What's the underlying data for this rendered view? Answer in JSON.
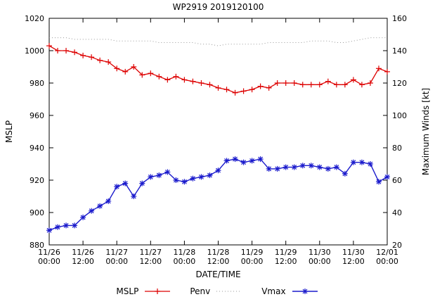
{
  "title": "WP2919 2019120100",
  "axes": {
    "left_label": "MSLP",
    "right_label": "Maximum Winds [kt]",
    "x_label": "DATE/TIME"
  },
  "chart_data": {
    "type": "line",
    "title": "WP2919 2019120100",
    "xlabel": "DATE/TIME",
    "x_interval_hours": 3,
    "x_tick_every": 4,
    "x_tick_labels": [
      [
        "11/26",
        "00:00"
      ],
      [
        "11/26",
        "12:00"
      ],
      [
        "11/27",
        "00:00"
      ],
      [
        "11/27",
        "12:00"
      ],
      [
        "11/28",
        "00:00"
      ],
      [
        "11/28",
        "12:00"
      ],
      [
        "11/29",
        "00:00"
      ],
      [
        "11/29",
        "12:00"
      ],
      [
        "11/30",
        "00:00"
      ],
      [
        "11/30",
        "12:00"
      ],
      [
        "12/01",
        "00:00"
      ]
    ],
    "grid": false,
    "legend_position": "bottom",
    "y_left": {
      "label": "MSLP",
      "range": [
        880,
        1020
      ],
      "ticks": [
        880,
        900,
        920,
        940,
        960,
        980,
        1000,
        1020
      ]
    },
    "y_right": {
      "label": "Maximum Winds [kt]",
      "range": [
        20,
        160
      ],
      "ticks": [
        20,
        40,
        60,
        80,
        100,
        120,
        140,
        160
      ]
    },
    "series": [
      {
        "name": "MSLP",
        "axis": "left",
        "color": "#dd0000",
        "style": "solid",
        "marker": "plus",
        "width": 1.3,
        "values": [
          1003,
          1000,
          1000,
          999,
          997,
          996,
          994,
          993,
          989,
          987,
          990,
          985,
          986,
          984,
          982,
          984,
          982,
          981,
          980,
          979,
          977,
          976,
          974,
          975,
          976,
          978,
          977,
          980,
          980,
          980,
          979,
          979,
          979,
          981,
          979,
          979,
          982,
          979,
          980,
          989,
          987
        ]
      },
      {
        "name": "Penv",
        "axis": "left",
        "color": "#999999",
        "style": "dotted",
        "marker": "none",
        "width": 1,
        "values": [
          1008,
          1008,
          1008,
          1007,
          1007,
          1007,
          1007,
          1007,
          1006,
          1006,
          1006,
          1006,
          1006,
          1005,
          1005,
          1005,
          1005,
          1005,
          1004,
          1004,
          1003,
          1004,
          1004,
          1004,
          1004,
          1004,
          1005,
          1005,
          1005,
          1005,
          1005,
          1006,
          1006,
          1006,
          1005,
          1005,
          1006,
          1007,
          1008,
          1008,
          1008
        ]
      },
      {
        "name": "Vmax",
        "axis": "right",
        "color": "#1a1acc",
        "style": "solid",
        "marker": "asterisk",
        "width": 1.4,
        "values": [
          29,
          31,
          32,
          32,
          37,
          41,
          44,
          47,
          56,
          58,
          50,
          58,
          62,
          63,
          65,
          60,
          59,
          61,
          62,
          63,
          66,
          72,
          73,
          71,
          72,
          73,
          67,
          67,
          68,
          68,
          69,
          69,
          68,
          67,
          68,
          64,
          71,
          71,
          70,
          59,
          62
        ]
      }
    ]
  },
  "legend": {
    "items": [
      "MSLP",
      "Penv",
      "Vmax"
    ]
  }
}
